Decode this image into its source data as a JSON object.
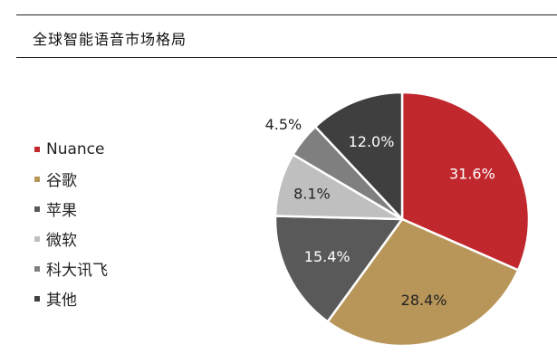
{
  "title": "全球智能语音市场格局",
  "chart_data": {
    "type": "pie",
    "title": "全球智能语音市场格局",
    "categories": [
      "Nuance",
      "谷歌",
      "苹果",
      "微软",
      "科大讯飞",
      "其他"
    ],
    "values": [
      31.6,
      28.4,
      15.4,
      8.1,
      4.5,
      12.0
    ],
    "value_labels": [
      "31.6%",
      "28.4%",
      "15.4%",
      "8.1%",
      "4.5%",
      "12.0%"
    ],
    "colors": [
      "#c0282d",
      "#b8965a",
      "#595959",
      "#bfbfbf",
      "#7f7f7f",
      "#3f3f3f"
    ],
    "label_colors": [
      "#ffffff",
      "#222222",
      "#ffffff",
      "#222222",
      "#222222",
      "#ffffff"
    ],
    "legend_position": "left"
  }
}
